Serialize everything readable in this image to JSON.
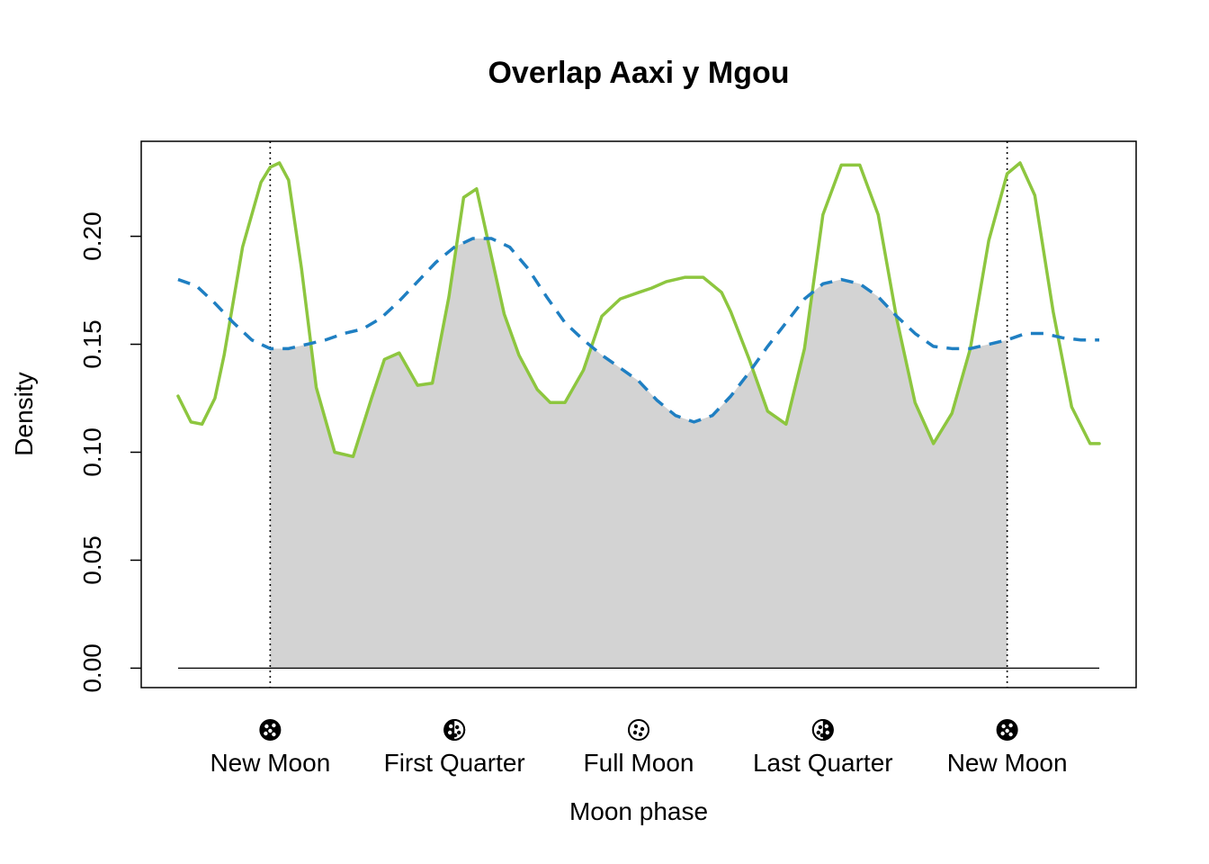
{
  "chart_data": {
    "type": "line",
    "title": "Overlap Aaxi y Mgou",
    "xlabel": "Moon phase",
    "ylabel": "Density",
    "xlim": [
      -0.7,
      4.7
    ],
    "ylim": [
      -0.009,
      0.244
    ],
    "x_ticks": [
      0,
      1,
      2,
      3,
      4
    ],
    "x_tick_labels": [
      "New Moon",
      "First Quarter",
      "Full Moon",
      "Last Quarter",
      "New Moon"
    ],
    "x_tick_icons": [
      "new-moon-icon",
      "first-quarter-icon",
      "full-moon-icon",
      "last-quarter-icon",
      "new-moon-icon"
    ],
    "y_ticks": [
      0.0,
      0.05,
      0.1,
      0.15,
      0.2
    ],
    "y_tick_labels": [
      "0.00",
      "0.05",
      "0.10",
      "0.15",
      "0.20"
    ],
    "vertical_lines_x": [
      0,
      4
    ],
    "grid": false,
    "overlap_fill_color": "#d3d3d3",
    "series": [
      {
        "style": "solid",
        "color": "#8dc63f",
        "x": [
          -0.5,
          -0.43,
          -0.37,
          -0.3,
          -0.25,
          -0.15,
          -0.05,
          0.0,
          0.05,
          0.1,
          0.17,
          0.25,
          0.35,
          0.45,
          0.55,
          0.62,
          0.7,
          0.8,
          0.88,
          0.97,
          1.05,
          1.12,
          1.2,
          1.27,
          1.35,
          1.45,
          1.52,
          1.6,
          1.7,
          1.8,
          1.9,
          2.0,
          2.07,
          2.15,
          2.25,
          2.35,
          2.45,
          2.5,
          2.6,
          2.7,
          2.8,
          2.9,
          3.0,
          3.1,
          3.2,
          3.3,
          3.4,
          3.5,
          3.6,
          3.7,
          3.8,
          3.9,
          4.0,
          4.07,
          4.15,
          4.25,
          4.35,
          4.45,
          4.5
        ],
        "y": [
          0.126,
          0.114,
          0.113,
          0.125,
          0.145,
          0.195,
          0.225,
          0.232,
          0.234,
          0.226,
          0.185,
          0.13,
          0.1,
          0.098,
          0.125,
          0.143,
          0.146,
          0.131,
          0.132,
          0.172,
          0.218,
          0.222,
          0.191,
          0.164,
          0.145,
          0.129,
          0.123,
          0.123,
          0.138,
          0.163,
          0.171,
          0.174,
          0.176,
          0.179,
          0.181,
          0.181,
          0.174,
          0.165,
          0.143,
          0.119,
          0.113,
          0.148,
          0.21,
          0.233,
          0.233,
          0.21,
          0.162,
          0.123,
          0.104,
          0.118,
          0.148,
          0.198,
          0.229,
          0.234,
          0.219,
          0.165,
          0.121,
          0.104,
          0.104
        ]
      },
      {
        "style": "dashed",
        "color": "#1f7fc2",
        "x": [
          -0.5,
          -0.4,
          -0.3,
          -0.2,
          -0.1,
          0.0,
          0.1,
          0.2,
          0.3,
          0.4,
          0.5,
          0.6,
          0.7,
          0.8,
          0.9,
          1.0,
          1.1,
          1.2,
          1.3,
          1.4,
          1.5,
          1.6,
          1.7,
          1.8,
          1.9,
          2.0,
          2.1,
          2.2,
          2.3,
          2.4,
          2.5,
          2.6,
          2.7,
          2.8,
          2.9,
          3.0,
          3.1,
          3.2,
          3.3,
          3.4,
          3.5,
          3.6,
          3.7,
          3.8,
          3.9,
          4.0,
          4.1,
          4.2,
          4.3,
          4.4,
          4.5
        ],
        "y": [
          0.18,
          0.177,
          0.169,
          0.16,
          0.152,
          0.148,
          0.148,
          0.15,
          0.152,
          0.155,
          0.157,
          0.162,
          0.17,
          0.179,
          0.188,
          0.195,
          0.199,
          0.199,
          0.195,
          0.185,
          0.172,
          0.16,
          0.152,
          0.145,
          0.139,
          0.133,
          0.124,
          0.117,
          0.114,
          0.117,
          0.126,
          0.137,
          0.149,
          0.16,
          0.171,
          0.178,
          0.18,
          0.178,
          0.172,
          0.163,
          0.155,
          0.149,
          0.148,
          0.148,
          0.15,
          0.152,
          0.155,
          0.155,
          0.153,
          0.152,
          0.152
        ]
      }
    ]
  }
}
